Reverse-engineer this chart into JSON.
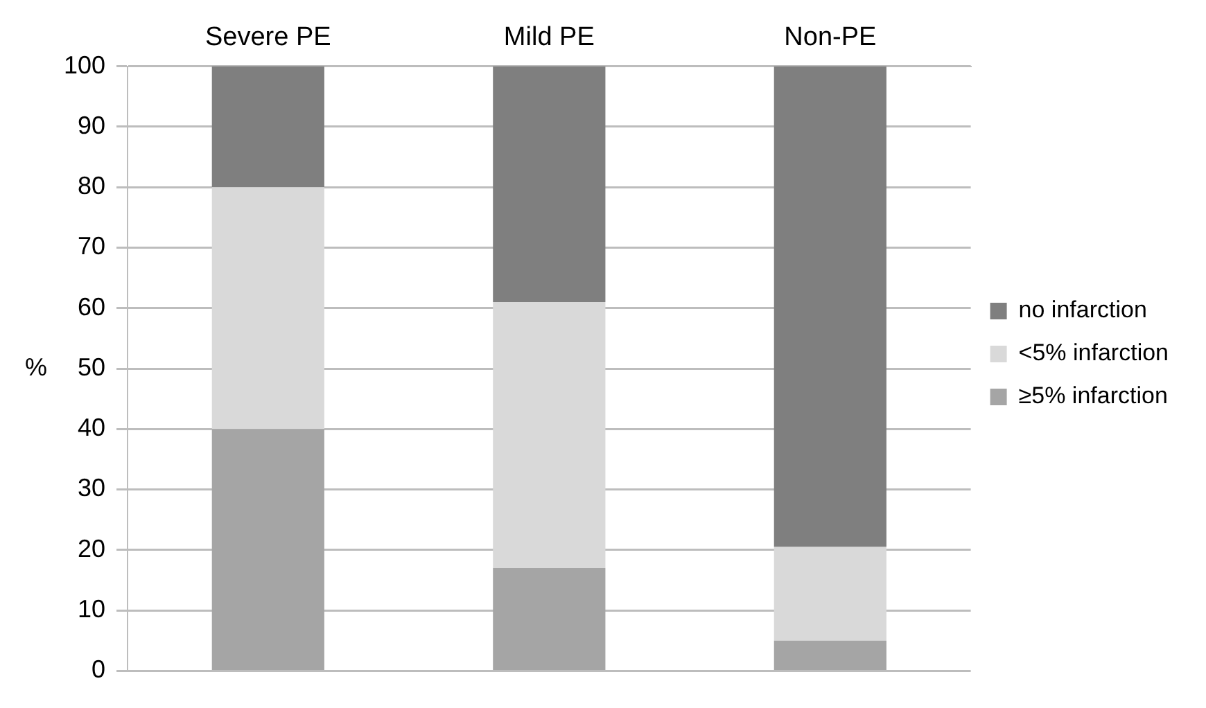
{
  "chart_data": {
    "type": "bar",
    "stacked": true,
    "ylabel": "%",
    "categories": [
      "Severe PE",
      "Mild PE",
      "Non-PE"
    ],
    "series": [
      {
        "name": "≥5% infarction",
        "color": "#a5a5a5",
        "values": [
          40,
          17,
          5
        ]
      },
      {
        "name": "<5% infarction",
        "color": "#d9d9d9",
        "values": [
          40,
          44,
          15.5
        ]
      },
      {
        "name": "no infarction",
        "color": "#7f7f7f",
        "values": [
          20,
          39,
          79.5
        ]
      }
    ],
    "ylim": [
      0,
      100
    ],
    "yticks": [
      0,
      10,
      20,
      30,
      40,
      50,
      60,
      70,
      80,
      90,
      100
    ],
    "grid": "y",
    "legend": "right"
  }
}
